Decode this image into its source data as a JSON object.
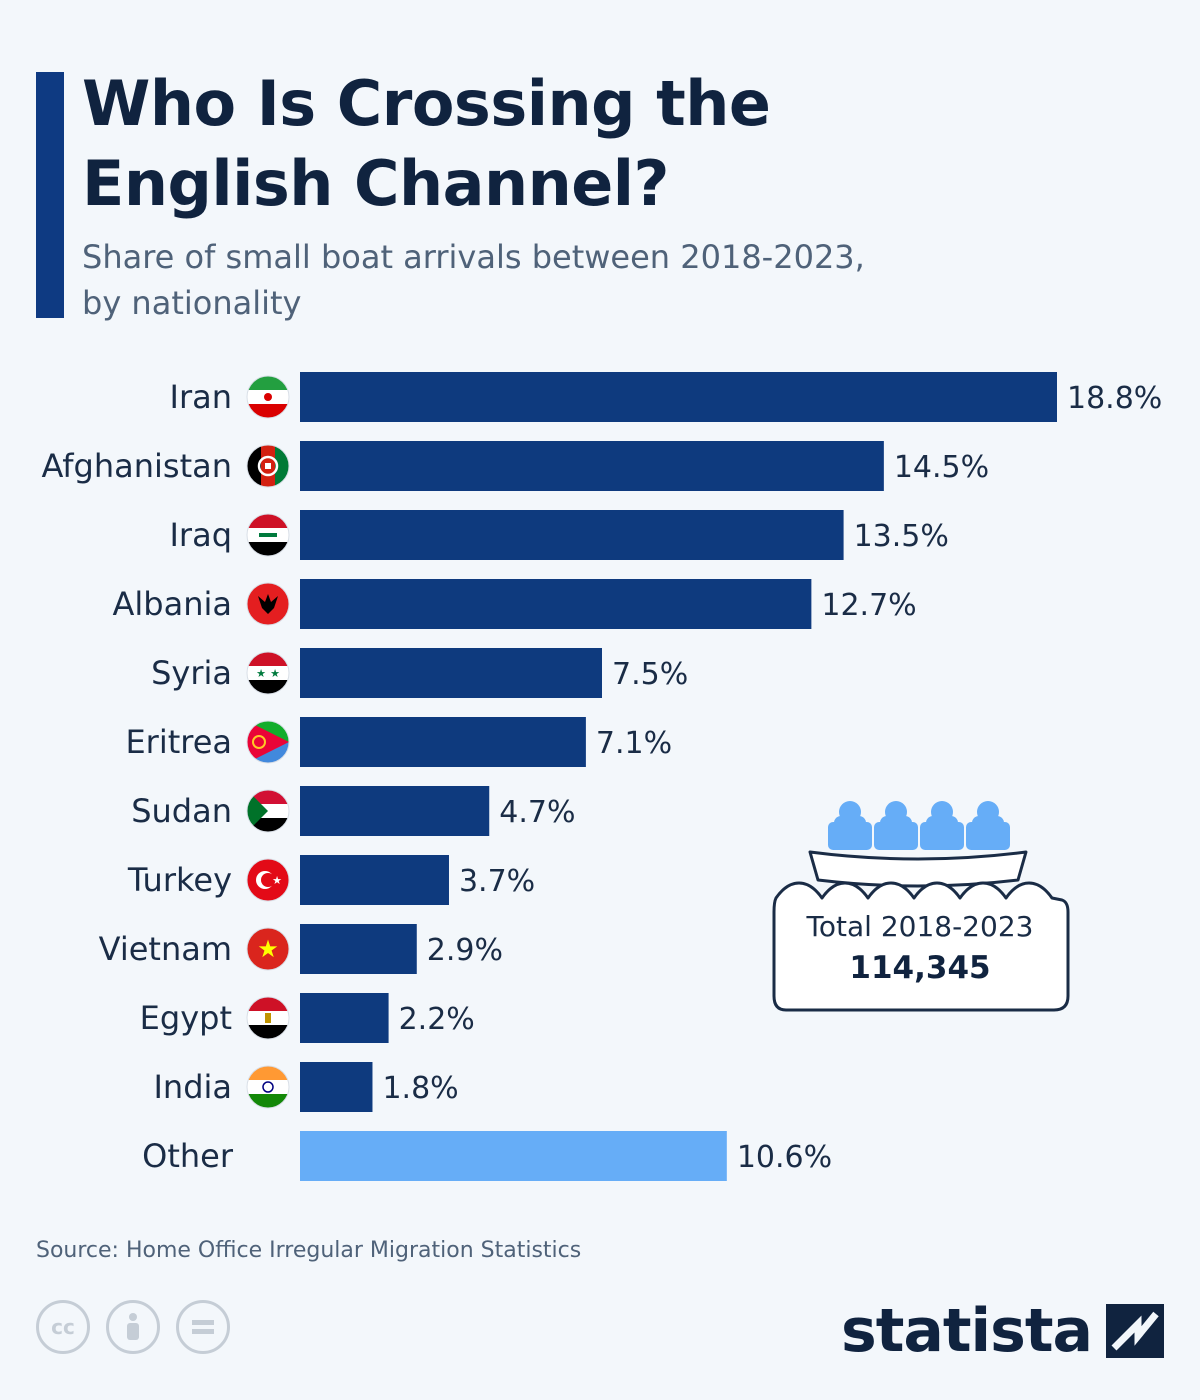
{
  "header": {
    "title_line1": "Who Is Crossing the",
    "title_line2": "English Channel?",
    "subtitle_line1": "Share of small boat arrivals between 2018-2023,",
    "subtitle_line2": "by nationality"
  },
  "chart_data": {
    "type": "bar",
    "orientation": "horizontal",
    "categories": [
      "Iran",
      "Afghanistan",
      "Iraq",
      "Albania",
      "Syria",
      "Eritrea",
      "Sudan",
      "Turkey",
      "Vietnam",
      "Egypt",
      "India",
      "Other"
    ],
    "values": [
      18.8,
      14.5,
      13.5,
      12.7,
      7.5,
      7.1,
      4.7,
      3.7,
      2.9,
      2.2,
      1.8,
      10.6
    ],
    "value_labels": [
      "18.8%",
      "14.5%",
      "13.5%",
      "12.7%",
      "7.5%",
      "7.1%",
      "4.7%",
      "3.7%",
      "2.9%",
      "2.2%",
      "1.8%",
      "10.6%"
    ],
    "xlim": [
      0,
      18.8
    ],
    "grid": false,
    "colors": {
      "main": "#0e3a7e",
      "other": "#66adf7"
    }
  },
  "flags": [
    "iran-flag-icon",
    "afghanistan-flag-icon",
    "iraq-flag-icon",
    "albania-flag-icon",
    "syria-flag-icon",
    "eritrea-flag-icon",
    "sudan-flag-icon",
    "turkey-flag-icon",
    "vietnam-flag-icon",
    "egypt-flag-icon",
    "india-flag-icon"
  ],
  "total_callout": {
    "label": "Total 2018-2023",
    "value": "114,345",
    "icon": "boat-with-people-icon"
  },
  "footer": {
    "source": "Source: Home Office Irregular Migration Statistics",
    "brand": "statista",
    "license_icons": [
      "cc-icon",
      "by-icon",
      "nd-icon"
    ]
  },
  "colors": {
    "accent": "#0e3a82",
    "title": "#10233f",
    "background": "#f3f7fb"
  }
}
